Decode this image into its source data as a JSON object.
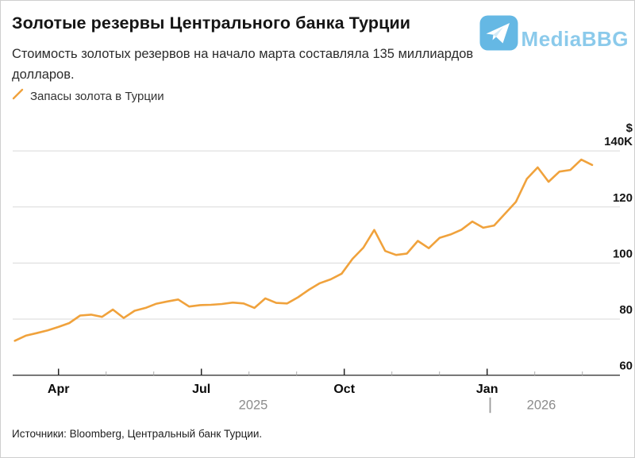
{
  "header": {
    "title": "Золотые резервы Центрального банка Турции",
    "subtitle": "Стоимость золотых резервов на начало марта составляла 135 миллиардов долларов."
  },
  "brand": {
    "name": "MediaBBG",
    "icon": "telegram-paper-plane",
    "text_color": "#82c6ea",
    "icon_bg_color": "#58b3e2"
  },
  "chart_data": {
    "type": "line",
    "title": "Золотые резервы Центрального банка Турции",
    "series": [
      {
        "name": "Запасы золота в Турции",
        "color": "#f0a23c",
        "values": [
          72.3,
          74.1,
          75.0,
          76.0,
          77.2,
          78.6,
          81.3,
          81.6,
          80.8,
          83.4,
          80.4,
          83.0,
          84.0,
          85.5,
          86.3,
          87.0,
          84.5,
          85.0,
          85.1,
          85.4,
          85.9,
          85.6,
          84.0,
          87.4,
          85.8,
          85.6,
          87.8,
          90.5,
          92.8,
          94.2,
          96.2,
          101.5,
          105.5,
          111.8,
          104.3,
          102.9,
          103.4,
          107.9,
          105.3,
          109.0,
          110.2,
          111.9,
          114.8,
          112.6,
          113.4,
          117.6,
          121.8,
          130.0,
          134.1,
          129.0,
          132.6,
          133.2,
          136.9,
          135.0
        ]
      }
    ],
    "frequency": "weekly",
    "x_start": "2025-03-04",
    "x_end": "2026-03-10",
    "xlabel": "",
    "ylabel": "$",
    "y_unit_prefix": "$",
    "ylim": [
      60,
      140
    ],
    "yticks": [
      60,
      80,
      100,
      120,
      140
    ],
    "ytick_labels": [
      "60",
      "80",
      "100",
      "120",
      "140K"
    ],
    "x_ticks": [
      {
        "label": "Apr",
        "major": true
      },
      {
        "label": "",
        "major": false
      },
      {
        "label": "",
        "major": false
      },
      {
        "label": "Jul",
        "major": true
      },
      {
        "label": "",
        "major": false
      },
      {
        "label": "",
        "major": false
      },
      {
        "label": "Oct",
        "major": true
      },
      {
        "label": "",
        "major": false
      },
      {
        "label": "",
        "major": false
      },
      {
        "label": "Jan",
        "major": true
      },
      {
        "label": "",
        "major": false
      },
      {
        "label": "",
        "major": false
      }
    ],
    "year_labels": [
      "2025",
      "2026"
    ],
    "year_divider": "|",
    "grid": "horizontal",
    "legend_position": "top-left"
  },
  "footer": {
    "source": "Источники: Bloomberg, Центральный банк Турции."
  }
}
